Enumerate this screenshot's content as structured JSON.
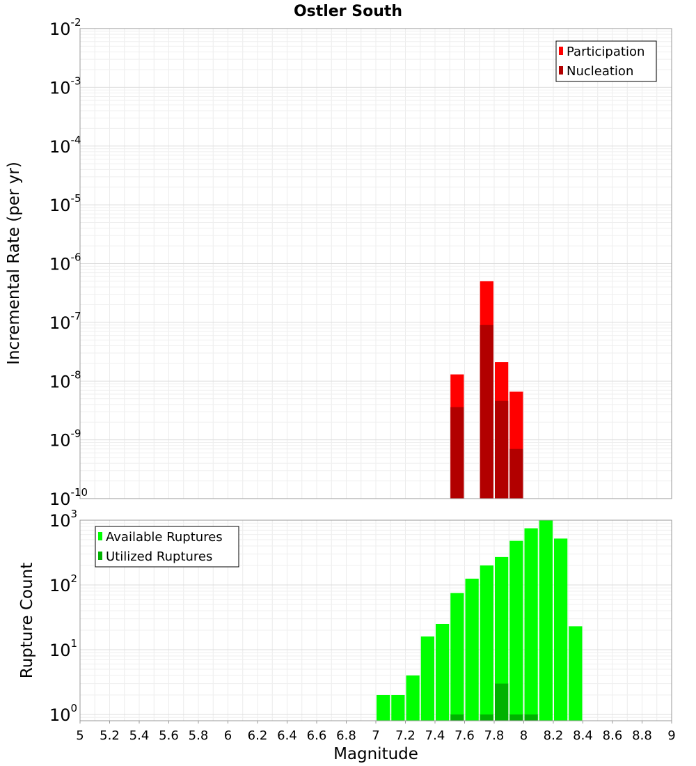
{
  "chart_data": [
    {
      "type": "bar",
      "title": "Ostler South",
      "xlabel": "",
      "ylabel": "Incremental Rate (per yr)",
      "yscale": "log",
      "ylim": [
        1e-10,
        0.01
      ],
      "xlim": [
        5,
        9
      ],
      "ytick_base": "10",
      "ytick_exponents": [
        "-10",
        "-9",
        "-8",
        "-7",
        "-6",
        "-5",
        "-4",
        "-3",
        "-2"
      ],
      "legend_position": "top-right",
      "bar_width": 0.1,
      "overlay": true,
      "series": [
        {
          "name": "Participation",
          "color": "#ff0000",
          "x": [
            7.55,
            7.75,
            7.85,
            7.95
          ],
          "values": [
            1.3e-08,
            5e-07,
            2.1e-08,
            6.6e-09
          ]
        },
        {
          "name": "Nucleation",
          "color": "#b20000",
          "x": [
            7.55,
            7.75,
            7.85,
            7.95
          ],
          "values": [
            3.6e-09,
            9e-08,
            4.6e-09,
            7e-10
          ]
        }
      ]
    },
    {
      "type": "bar",
      "xlabel": "Magnitude",
      "ylabel": "Rupture Count",
      "yscale": "log",
      "ylim": [
        0.8,
        1000
      ],
      "xlim": [
        5,
        9
      ],
      "ytick_base": "10",
      "ytick_exponents": [
        "0",
        "1",
        "2",
        "3"
      ],
      "xticks": [
        "5",
        "5.2",
        "5.4",
        "5.6",
        "5.8",
        "6",
        "6.2",
        "6.4",
        "6.6",
        "6.8",
        "7",
        "7.2",
        "7.4",
        "7.6",
        "7.8",
        "8",
        "8.2",
        "8.4",
        "8.6",
        "8.8",
        "9"
      ],
      "legend_position": "top-left",
      "bar_width": 0.1,
      "overlay": true,
      "series": [
        {
          "name": "Available Ruptures",
          "color": "#00ff00",
          "x": [
            7.05,
            7.15,
            7.25,
            7.35,
            7.45,
            7.55,
            7.65,
            7.75,
            7.85,
            7.95,
            8.05,
            8.15,
            8.25,
            8.35
          ],
          "values": [
            2,
            2,
            4,
            16,
            25,
            75,
            125,
            200,
            270,
            480,
            750,
            1000,
            520,
            23
          ]
        },
        {
          "name": "Utilized Ruptures",
          "color": "#00b200",
          "x": [
            7.55,
            7.75,
            7.85,
            7.95,
            8.05
          ],
          "values": [
            1,
            1,
            3,
            1,
            1
          ]
        }
      ]
    }
  ]
}
